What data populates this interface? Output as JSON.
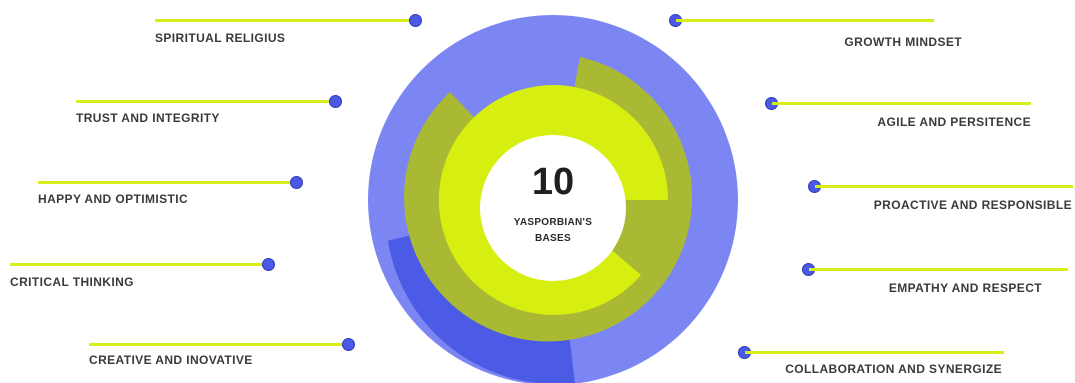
{
  "center": {
    "number": "10",
    "line1": "YASPORBIAN'S",
    "line2": "BASES"
  },
  "colors": {
    "outer_ring_light": "#7b86f2",
    "outer_ring_dark": "#4b5be6",
    "middle_ring": "#aab934",
    "inner_ring": "#d7ef10",
    "connector_line": "#d8ee1a",
    "marker_dot": "#4a59e6",
    "label_text": "#3a3a3a"
  },
  "left_items": [
    {
      "label": "SPIRITUAL RELIGIUS"
    },
    {
      "label": "TRUST AND INTEGRITY"
    },
    {
      "label": "HAPPY AND OPTIMISTIC"
    },
    {
      "label": "CRITICAL THINKING"
    },
    {
      "label": "CREATIVE AND INOVATIVE"
    }
  ],
  "right_items": [
    {
      "label": "GROWTH MINDSET"
    },
    {
      "label": "AGILE AND PERSITENCE"
    },
    {
      "label": "PROACTIVE AND RESPONSIBLE"
    },
    {
      "label": "EMPATHY AND RESPECT"
    },
    {
      "label": "COLLABORATION AND SYNERGIZE"
    }
  ]
}
